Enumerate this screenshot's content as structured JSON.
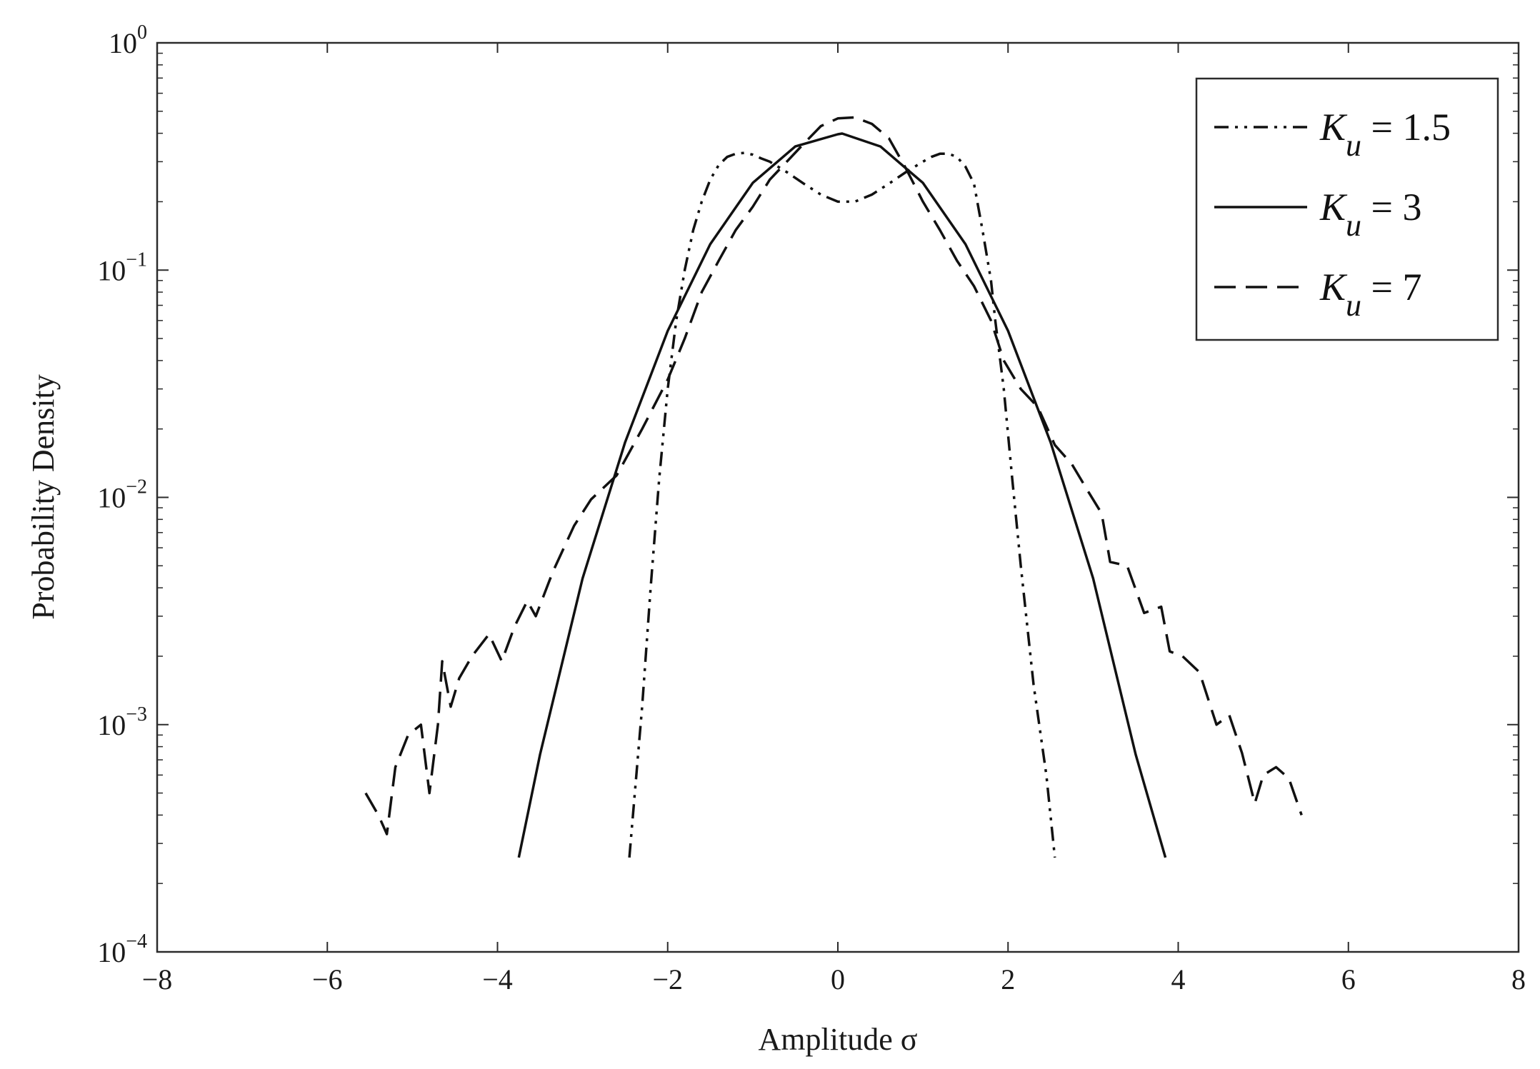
{
  "chart_data": {
    "type": "line",
    "title": "",
    "xlabel": "Amplitude σ",
    "ylabel": "Probability Density",
    "xlim": [
      -8,
      8
    ],
    "ylim": [
      0.0001,
      1
    ],
    "yscale": "log",
    "grid": false,
    "legend_position": "top-right",
    "x_ticks": [
      "−8",
      "−6",
      "−4",
      "−2",
      "0",
      "2",
      "4",
      "6",
      "8"
    ],
    "y_ticks": [
      {
        "base": "10",
        "exp": "−4"
      },
      {
        "base": "10",
        "exp": "−3"
      },
      {
        "base": "10",
        "exp": "−2"
      },
      {
        "base": "10",
        "exp": "−1"
      },
      {
        "base": "10",
        "exp": "0"
      }
    ],
    "series": [
      {
        "legend": {
          "symbol": "K",
          "subscript": "u",
          "rest": " = 1.5"
        },
        "line_style": "dash-dot-dot",
        "color": "#111111",
        "points": [
          [
            -2.45,
            0.00026
          ],
          [
            -2.3,
            0.0012
          ],
          [
            -2.2,
            0.004
          ],
          [
            -2.1,
            0.012
          ],
          [
            -2.0,
            0.03
          ],
          [
            -1.9,
            0.06
          ],
          [
            -1.8,
            0.1
          ],
          [
            -1.7,
            0.15
          ],
          [
            -1.6,
            0.2
          ],
          [
            -1.5,
            0.25
          ],
          [
            -1.4,
            0.29
          ],
          [
            -1.3,
            0.315
          ],
          [
            -1.2,
            0.325
          ],
          [
            -1.1,
            0.328
          ],
          [
            -1.0,
            0.322
          ],
          [
            -0.9,
            0.31
          ],
          [
            -0.8,
            0.3
          ],
          [
            -0.6,
            0.27
          ],
          [
            -0.4,
            0.24
          ],
          [
            -0.2,
            0.215
          ],
          [
            0.0,
            0.2
          ],
          [
            0.2,
            0.2
          ],
          [
            0.4,
            0.215
          ],
          [
            0.6,
            0.24
          ],
          [
            0.8,
            0.27
          ],
          [
            1.0,
            0.3
          ],
          [
            1.1,
            0.315
          ],
          [
            1.2,
            0.325
          ],
          [
            1.3,
            0.325
          ],
          [
            1.4,
            0.315
          ],
          [
            1.5,
            0.285
          ],
          [
            1.6,
            0.24
          ],
          [
            1.7,
            0.15
          ],
          [
            1.8,
            0.09
          ],
          [
            1.85,
            0.06
          ],
          [
            1.95,
            0.03
          ],
          [
            2.05,
            0.012
          ],
          [
            2.15,
            0.005
          ],
          [
            2.3,
            0.0015
          ],
          [
            2.45,
            0.0006
          ],
          [
            2.55,
            0.00026
          ]
        ]
      },
      {
        "legend": {
          "symbol": "K",
          "subscript": "u",
          "rest": " = 3"
        },
        "line_style": "solid",
        "color": "#111111",
        "points": [
          [
            -3.75,
            0.00026
          ],
          [
            -3.5,
            0.00074
          ],
          [
            -3.0,
            0.0044
          ],
          [
            -2.5,
            0.0175
          ],
          [
            -2.0,
            0.054
          ],
          [
            -1.5,
            0.13
          ],
          [
            -1.0,
            0.242
          ],
          [
            -0.5,
            0.35
          ],
          [
            0.0,
            0.396
          ],
          [
            0.05,
            0.399
          ],
          [
            0.5,
            0.35
          ],
          [
            1.0,
            0.242
          ],
          [
            1.5,
            0.13
          ],
          [
            2.0,
            0.054
          ],
          [
            2.5,
            0.0175
          ],
          [
            3.0,
            0.0044
          ],
          [
            3.5,
            0.00074
          ],
          [
            3.85,
            0.00026
          ]
        ]
      },
      {
        "legend": {
          "symbol": "K",
          "subscript": "u",
          "rest": " = 7"
        },
        "line_style": "dashed",
        "color": "#111111",
        "points": [
          [
            -5.55,
            0.0005
          ],
          [
            -5.4,
            0.0004
          ],
          [
            -5.3,
            0.00033
          ],
          [
            -5.2,
            0.00065
          ],
          [
            -5.05,
            0.0009
          ],
          [
            -4.9,
            0.001
          ],
          [
            -4.8,
            0.0005
          ],
          [
            -4.7,
            0.001
          ],
          [
            -4.65,
            0.0019
          ],
          [
            -4.55,
            0.0012
          ],
          [
            -4.45,
            0.0016
          ],
          [
            -4.3,
            0.002
          ],
          [
            -4.1,
            0.0025
          ],
          [
            -3.95,
            0.0019
          ],
          [
            -3.8,
            0.0027
          ],
          [
            -3.65,
            0.0035
          ],
          [
            -3.55,
            0.003
          ],
          [
            -3.35,
            0.0047
          ],
          [
            -3.1,
            0.0075
          ],
          [
            -2.9,
            0.0098
          ],
          [
            -2.6,
            0.0125
          ],
          [
            -2.3,
            0.02
          ],
          [
            -2.0,
            0.033
          ],
          [
            -1.8,
            0.05
          ],
          [
            -1.6,
            0.08
          ],
          [
            -1.4,
            0.11
          ],
          [
            -1.2,
            0.15
          ],
          [
            -1.0,
            0.19
          ],
          [
            -0.8,
            0.25
          ],
          [
            -0.6,
            0.3
          ],
          [
            -0.4,
            0.36
          ],
          [
            -0.2,
            0.43
          ],
          [
            0.0,
            0.465
          ],
          [
            0.2,
            0.47
          ],
          [
            0.4,
            0.44
          ],
          [
            0.6,
            0.38
          ],
          [
            0.8,
            0.28
          ],
          [
            1.0,
            0.2
          ],
          [
            1.2,
            0.15
          ],
          [
            1.4,
            0.11
          ],
          [
            1.6,
            0.085
          ],
          [
            1.8,
            0.06
          ],
          [
            1.95,
            0.04
          ],
          [
            2.15,
            0.03
          ],
          [
            2.35,
            0.025
          ],
          [
            2.55,
            0.017
          ],
          [
            2.75,
            0.014
          ],
          [
            2.95,
            0.0105
          ],
          [
            3.1,
            0.0085
          ],
          [
            3.2,
            0.0052
          ],
          [
            3.4,
            0.005
          ],
          [
            3.6,
            0.0031
          ],
          [
            3.8,
            0.0033
          ],
          [
            3.9,
            0.0021
          ],
          [
            4.05,
            0.002
          ],
          [
            4.25,
            0.0017
          ],
          [
            4.45,
            0.001
          ],
          [
            4.6,
            0.0011
          ],
          [
            4.75,
            0.00075
          ],
          [
            4.9,
            0.00045
          ],
          [
            5.0,
            0.0006
          ],
          [
            5.15,
            0.00065
          ],
          [
            5.3,
            0.00058
          ],
          [
            5.45,
            0.0004
          ]
        ]
      }
    ]
  }
}
